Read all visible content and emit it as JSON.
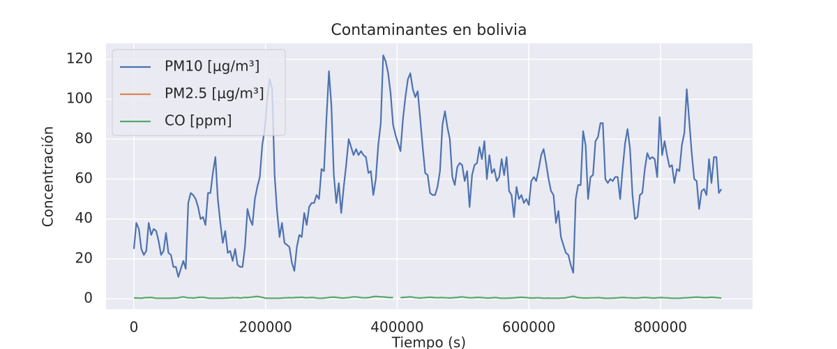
{
  "chart_data": {
    "type": "line",
    "title": "Contaminantes en bolivia",
    "xlabel": "Tiempo (s)",
    "ylabel": "Concentración",
    "xlim": [
      -42400,
      940000
    ],
    "ylim": [
      -5.2,
      128
    ],
    "xticks": [
      0,
      200000,
      400000,
      600000,
      800000
    ],
    "yticks": [
      0,
      20,
      40,
      60,
      80,
      100,
      120
    ],
    "grid": true,
    "legend": "upper left",
    "x": [
      0,
      3750,
      7500,
      11250,
      15000,
      18750,
      22500,
      26250,
      30000,
      33750,
      37500,
      41250,
      45000,
      48750,
      52500,
      56250,
      60000,
      63750,
      67500,
      71250,
      75000,
      78750,
      82500,
      86250,
      90000,
      93750,
      97500,
      101250,
      105000,
      108750,
      112500,
      116250,
      120000,
      123750,
      127500,
      131250,
      135000,
      138750,
      142500,
      146250,
      150000,
      153750,
      157500,
      161250,
      165000,
      168750,
      172500,
      176250,
      180000,
      183750,
      187500,
      191250,
      195000,
      198750,
      202500,
      206250,
      210000,
      213750,
      217500,
      221250,
      225000,
      228750,
      232500,
      236250,
      240000,
      243750,
      247500,
      251250,
      255000,
      258750,
      262500,
      266250,
      270000,
      273750,
      277500,
      281250,
      285000,
      288750,
      292500,
      296250,
      300000,
      303750,
      307500,
      311250,
      315000,
      318750,
      322500,
      326250,
      330000,
      333750,
      337500,
      341250,
      345000,
      348750,
      352500,
      356250,
      360000,
      363750,
      367500,
      371250,
      375000,
      378750,
      382500,
      386250,
      390000,
      393750,
      397500,
      401250,
      405000,
      408750,
      412500,
      416250,
      420000,
      423750,
      427500,
      431250,
      435000,
      438750,
      442500,
      446250,
      450000,
      453750,
      457500,
      461250,
      465000,
      468750,
      472500,
      476250,
      480000,
      483750,
      487500,
      491250,
      495000,
      498750,
      502500,
      506250,
      510000,
      513750,
      517500,
      521250,
      525000,
      528750,
      532500,
      536250,
      540000,
      543750,
      547500,
      551250,
      555000,
      558750,
      562500,
      566250,
      570000,
      573750,
      577500,
      581250,
      585000,
      588750,
      592500,
      596250,
      600000,
      603750,
      607500,
      611250,
      615000,
      618750,
      622500,
      626250,
      630000,
      633750,
      637500,
      641250,
      645000,
      648750,
      652500,
      656250,
      660000,
      663750,
      667500,
      671250,
      675000,
      678750,
      682500,
      686250,
      690000,
      693750,
      697500,
      701250,
      705000,
      708750,
      712500,
      716250,
      720000,
      723750,
      727500,
      731250,
      735000,
      738750,
      742500,
      746250,
      750000,
      753750,
      757500,
      761250,
      765000,
      768750,
      772500,
      776250,
      780000,
      783750,
      787500,
      791250,
      795000,
      798750,
      802500,
      806250,
      810000,
      813750,
      817500,
      821250,
      825000,
      828750,
      832500,
      836250,
      840000,
      843750,
      847500,
      851250,
      855000,
      858750,
      862500,
      866250,
      870000,
      873750,
      877500,
      881250,
      885000,
      888750,
      892500
    ],
    "series": [
      {
        "name": "PM10 [μg/m³]",
        "color": "#4c72b0",
        "values": [
          25,
          38,
          35,
          25,
          22,
          24,
          38,
          32,
          35,
          34,
          29,
          22,
          24,
          33,
          23,
          22,
          16,
          16,
          11,
          15,
          19,
          15,
          48,
          53,
          52,
          50,
          46,
          40,
          41,
          37,
          53,
          53,
          63,
          71,
          50,
          38,
          28,
          34,
          23,
          24,
          19,
          25,
          17,
          16,
          16,
          26,
          45,
          40,
          37,
          50,
          56,
          61,
          77,
          85,
          100,
          110,
          105,
          62,
          44,
          31,
          38,
          28,
          27,
          26,
          18,
          14,
          26,
          32,
          31,
          43,
          37,
          46,
          48,
          48,
          52,
          50,
          65,
          64,
          90,
          114,
          97,
          62,
          48,
          58,
          43,
          56,
          67,
          80,
          76,
          72,
          75,
          72,
          74,
          72,
          71,
          63,
          64,
          52,
          60,
          77,
          88,
          122,
          119,
          113,
          103,
          87,
          82,
          78,
          74,
          90,
          101,
          110,
          113,
          105,
          101,
          104,
          90,
          76,
          63,
          62,
          53,
          52,
          52,
          56,
          64,
          87,
          94,
          86,
          80,
          61,
          57,
          66,
          68,
          67,
          59,
          64,
          46,
          62,
          67,
          68,
          76,
          70,
          79,
          60,
          72,
          63,
          65,
          59,
          61,
          70,
          62,
          71,
          54,
          52,
          41,
          56,
          50,
          52,
          48,
          50,
          47,
          59,
          61,
          59,
          65,
          72,
          75,
          68,
          60,
          54,
          52,
          38,
          44,
          31,
          27,
          23,
          22,
          17,
          13,
          50,
          57,
          57,
          84,
          77,
          50,
          61,
          62,
          79,
          81,
          88,
          88,
          60,
          58,
          60,
          59,
          61,
          61,
          50,
          65,
          78,
          85,
          75,
          52,
          40,
          41,
          52,
          53,
          65,
          73,
          70,
          71,
          70,
          61,
          91,
          72,
          79,
          72,
          66,
          67,
          58,
          65,
          64,
          77,
          83,
          105,
          89,
          73,
          60,
          59,
          45,
          54,
          55,
          52,
          70,
          58,
          71,
          71,
          53,
          55
        ]
      },
      {
        "name": "PM2.5 [μg/m³]",
        "color": "#dd8452",
        "values": [
          null,
          null,
          null,
          null,
          null,
          null,
          null,
          null,
          null,
          null,
          null,
          null,
          null,
          null,
          null,
          null,
          null,
          null,
          null,
          null,
          null,
          null,
          null,
          null,
          null,
          null,
          null,
          null,
          null,
          null,
          null,
          null,
          null,
          null,
          null,
          null,
          null,
          null,
          null,
          null,
          null,
          null,
          null,
          null,
          null,
          null,
          null,
          null,
          null,
          null,
          null,
          null,
          null,
          null,
          null,
          null,
          null,
          null,
          null,
          null,
          null,
          null,
          null,
          null,
          null,
          null,
          null,
          null,
          null,
          null,
          null,
          null,
          null,
          null,
          null,
          null,
          null,
          null,
          null,
          null,
          null,
          null,
          null,
          null,
          null,
          null,
          null,
          null,
          null,
          null,
          null,
          null,
          null,
          null,
          null,
          null,
          null,
          null,
          null,
          null,
          null,
          null,
          null,
          null,
          null,
          null,
          null,
          null,
          null,
          null,
          null,
          null,
          null,
          null,
          null,
          null,
          null,
          null,
          null,
          null,
          null,
          null,
          null,
          null,
          null,
          null,
          null,
          null,
          null,
          null,
          null,
          null,
          null,
          null,
          null,
          null,
          null,
          null,
          null,
          null,
          null,
          null,
          null,
          null,
          null,
          null,
          null,
          null,
          null,
          null,
          null,
          null,
          null,
          null,
          null,
          null,
          null,
          null,
          null,
          null,
          null,
          null,
          null,
          null,
          null,
          null,
          null,
          null,
          null,
          null,
          null,
          null,
          null,
          null,
          null,
          null,
          null,
          null,
          null,
          null,
          null,
          null,
          null,
          null,
          null,
          null,
          null,
          null,
          null,
          null,
          null,
          null,
          null,
          null,
          null,
          null,
          null,
          null,
          null,
          null,
          null,
          null,
          null,
          null,
          null,
          null,
          null,
          null,
          null,
          null,
          null,
          null,
          null,
          null,
          null,
          null,
          null,
          null,
          null,
          null,
          null,
          null,
          null,
          null,
          null,
          null,
          null,
          null,
          null,
          null,
          null,
          null,
          null,
          null,
          null,
          null,
          null,
          null,
          null
        ]
      },
      {
        "name": "CO [ppm]",
        "color": "#55a868",
        "values": [
          0.5,
          0.4,
          0.4,
          0.3,
          0.5,
          0.6,
          0.6,
          0.7,
          0.5,
          0.3,
          0.3,
          0.3,
          0.3,
          0.3,
          0.3,
          0.3,
          0.4,
          0.4,
          0.5,
          0.8,
          1.0,
          0.7,
          0.5,
          0.5,
          0.4,
          0.5,
          0.7,
          0.8,
          0.8,
          0.6,
          0.4,
          0.3,
          0.3,
          0.3,
          0.3,
          0.3,
          0.3,
          0.4,
          0.4,
          0.5,
          0.6,
          0.5,
          0.6,
          0.4,
          0.5,
          0.7,
          0.6,
          0.8,
          0.9,
          1.1,
          1.2,
          1.0,
          0.7,
          0.4,
          0.3,
          0.3,
          0.3,
          0.3,
          0.3,
          0.3,
          0.4,
          0.5,
          0.5,
          0.6,
          0.5,
          0.6,
          0.7,
          0.7,
          0.8,
          0.6,
          0.5,
          0.6,
          0.7,
          0.6,
          0.4,
          0.3,
          0.3,
          0.4,
          0.5,
          0.7,
          0.8,
          0.9,
          0.7,
          0.6,
          0.4,
          0.4,
          0.5,
          0.6,
          0.8,
          1.0,
          1.0,
          0.8,
          0.6,
          0.5,
          0.5,
          0.6,
          0.8,
          1.1,
          1.2,
          1.1,
          1.0,
          1.0,
          0.9,
          0.7,
          0.6,
          0.7,
          null,
          null,
          0.6,
          0.7,
          0.8,
          0.9,
          1.0,
          0.8,
          0.6,
          0.5,
          0.4,
          0.5,
          0.6,
          0.7,
          0.8,
          0.7,
          0.6,
          0.5,
          0.6,
          0.6,
          0.5,
          0.5,
          0.4,
          0.5,
          0.6,
          0.7,
          0.9,
          1.0,
          0.8,
          0.6,
          0.5,
          0.5,
          0.6,
          0.7,
          0.7,
          0.6,
          0.5,
          0.4,
          0.4,
          0.5,
          0.6,
          0.6,
          0.4,
          0.3,
          0.3,
          0.3,
          0.4,
          0.4,
          0.5,
          0.6,
          0.7,
          0.8,
          0.7,
          0.6,
          0.5,
          0.4,
          0.4,
          0.5,
          0.5,
          0.4,
          0.3,
          0.3,
          0.4,
          0.3,
          0.3,
          0.3,
          0.3,
          0.4,
          0.4,
          0.5,
          0.8,
          1.0,
          1.3,
          0.9,
          0.6,
          0.5,
          0.4,
          0.4,
          0.4,
          0.5,
          0.5,
          0.5,
          0.6,
          0.5,
          0.4,
          0.3,
          0.3,
          0.3,
          0.4,
          0.4,
          0.5,
          0.6,
          0.7,
          0.6,
          0.5,
          0.5,
          0.4,
          0.4,
          0.4,
          0.5,
          0.6,
          0.7,
          0.6,
          0.5,
          0.4,
          0.4,
          0.5,
          0.6,
          0.6,
          0.5,
          0.5,
          0.4,
          0.3,
          0.3,
          0.3,
          0.3,
          0.4,
          0.5,
          0.5,
          0.6,
          0.7,
          0.8,
          0.9,
          0.8,
          0.7,
          0.6,
          0.6,
          0.7,
          0.8,
          0.7,
          0.6,
          0.5,
          0.4
        ]
      }
    ]
  }
}
